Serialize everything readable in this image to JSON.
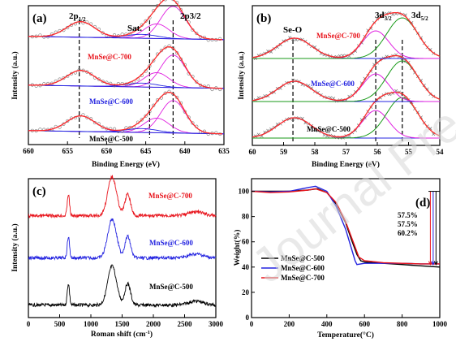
{
  "colors": {
    "red": "#e8141c",
    "blue": "#2424e0",
    "black": "#000000",
    "magenta": "#e020e0",
    "green": "#189a18",
    "fit": "#ff2a2a"
  },
  "watermark": "Journal Pre-proof",
  "chart_data": [
    {
      "panel": "(a)",
      "type": "line",
      "xlabel": "Binding Energy (eV)",
      "ylabel": "Intensity (a.u.)",
      "xlim": [
        660,
        635
      ],
      "x_ticks": [
        660,
        655,
        650,
        645,
        640,
        635
      ],
      "axis_direction": "reversed",
      "peak_labels": [
        {
          "text": "2p",
          "sub": "1/2",
          "x": 653.5
        },
        {
          "text": "Sat.",
          "x": 644.5
        },
        {
          "text": "2p3/2",
          "x": 641.5
        }
      ],
      "dashed_lines_x": [
        653.5,
        644.5,
        641.5
      ],
      "series": [
        {
          "name": "MnSe@C-700",
          "color": "red",
          "offset": 2
        },
        {
          "name": "MnSe@C-600",
          "color": "blue",
          "offset": 1
        },
        {
          "name": "MnSe@C-500",
          "color": "black",
          "offset": 0
        }
      ],
      "components": [
        {
          "center": 641.5,
          "width": 1.6,
          "height": 1.0
        },
        {
          "center": 643.6,
          "width": 1.6,
          "height": 0.45
        },
        {
          "center": 653.3,
          "width": 1.8,
          "height": 0.48
        },
        {
          "center": 645.5,
          "width": 2.0,
          "height": 0.12
        }
      ]
    },
    {
      "panel": "(b)",
      "type": "line",
      "xlabel": "Binding Energy (eV)",
      "ylabel": "Intensity (a.u.)",
      "xlim": [
        60,
        54
      ],
      "x_ticks": [
        60,
        59,
        58,
        57,
        56,
        55,
        54
      ],
      "axis_direction": "reversed",
      "peak_labels": [
        {
          "text": "Se-O",
          "x": 58.7
        },
        {
          "text": "3d",
          "sub": "3/2",
          "x": 56.05
        },
        {
          "text": "3d",
          "sub": "5/2",
          "x": 55.2
        }
      ],
      "dashed_lines_x": [
        58.7,
        56.05,
        55.2
      ],
      "series": [
        {
          "name": "MnSe@C-700",
          "color": "red",
          "offset": 2
        },
        {
          "name": "MnSe@C-600",
          "color": "blue",
          "offset": 1
        },
        {
          "name": "MnSe@C-500",
          "color": "black",
          "offset": 0
        }
      ],
      "components": [
        {
          "center": 58.65,
          "width": 0.55,
          "height": 0.5,
          "color": "blue"
        },
        {
          "center": 56.05,
          "width": 0.42,
          "height": 0.68,
          "color": "magenta"
        },
        {
          "center": 55.2,
          "width": 0.5,
          "height": 1.0,
          "color": "green"
        }
      ]
    },
    {
      "panel": "(c)",
      "type": "line",
      "xlabel": "Roman shift (cm",
      "xlabel_sup": "-1",
      "ylabel": "Intensity (a.u.)",
      "xlim": [
        0,
        3000
      ],
      "x_ticks": [
        0,
        500,
        1000,
        1500,
        2000,
        2500,
        3000
      ],
      "series": [
        {
          "name": "MnSe@C-700",
          "color": "red",
          "offset": 2
        },
        {
          "name": "MnSe@C-600",
          "color": "blue",
          "offset": 1
        },
        {
          "name": "MnSe@C-500",
          "color": "black",
          "offset": 0
        }
      ],
      "peaks": [
        {
          "center": 640,
          "width": 18,
          "height": 0.55
        },
        {
          "center": 1340,
          "width": 70,
          "height": 1.0
        },
        {
          "center": 1590,
          "width": 45,
          "height": 0.55
        },
        {
          "center": 2680,
          "width": 120,
          "height": 0.1
        }
      ]
    },
    {
      "panel": "(d)",
      "type": "line",
      "xlabel": "Temperature(°C)",
      "ylabel": "Weight(%)",
      "xlim": [
        0,
        1000
      ],
      "ylim": [
        0,
        110
      ],
      "x_ticks": [
        0,
        200,
        400,
        600,
        800,
        1000
      ],
      "y_ticks": [
        0,
        20,
        40,
        60,
        80,
        100
      ],
      "legend": "lower-left",
      "residual_labels": [
        {
          "text": "57.5%",
          "color": "red"
        },
        {
          "text": "57.5%",
          "color": "blue"
        },
        {
          "text": "60.2%",
          "color": "black"
        }
      ],
      "series": [
        {
          "name": "MnSe@C-500",
          "color": "black",
          "x": [
            0,
            100,
            200,
            300,
            350,
            400,
            450,
            500,
            530,
            560,
            580,
            600,
            700,
            800,
            900,
            1000
          ],
          "y": [
            100,
            100,
            100,
            101,
            102,
            99,
            90,
            75,
            62,
            50,
            45,
            44,
            43,
            42,
            41,
            40
          ]
        },
        {
          "name": "MnSe@C-600",
          "color": "blue",
          "x": [
            0,
            100,
            200,
            300,
            340,
            400,
            450,
            500,
            530,
            550,
            560,
            600,
            700,
            800,
            900,
            1000
          ],
          "y": [
            100,
            99.5,
            100,
            103,
            104,
            100,
            88,
            70,
            55,
            45,
            42,
            43,
            43,
            43,
            42.5,
            42.5
          ]
        },
        {
          "name": "MnSe@C-700",
          "color": "red",
          "x": [
            0,
            100,
            200,
            300,
            340,
            400,
            450,
            500,
            540,
            570,
            600,
            700,
            800,
            900,
            1000
          ],
          "y": [
            100,
            99,
            99.5,
            101,
            102,
            99,
            91,
            76,
            60,
            48,
            45,
            43.5,
            43,
            42.5,
            42.5
          ]
        }
      ]
    }
  ]
}
